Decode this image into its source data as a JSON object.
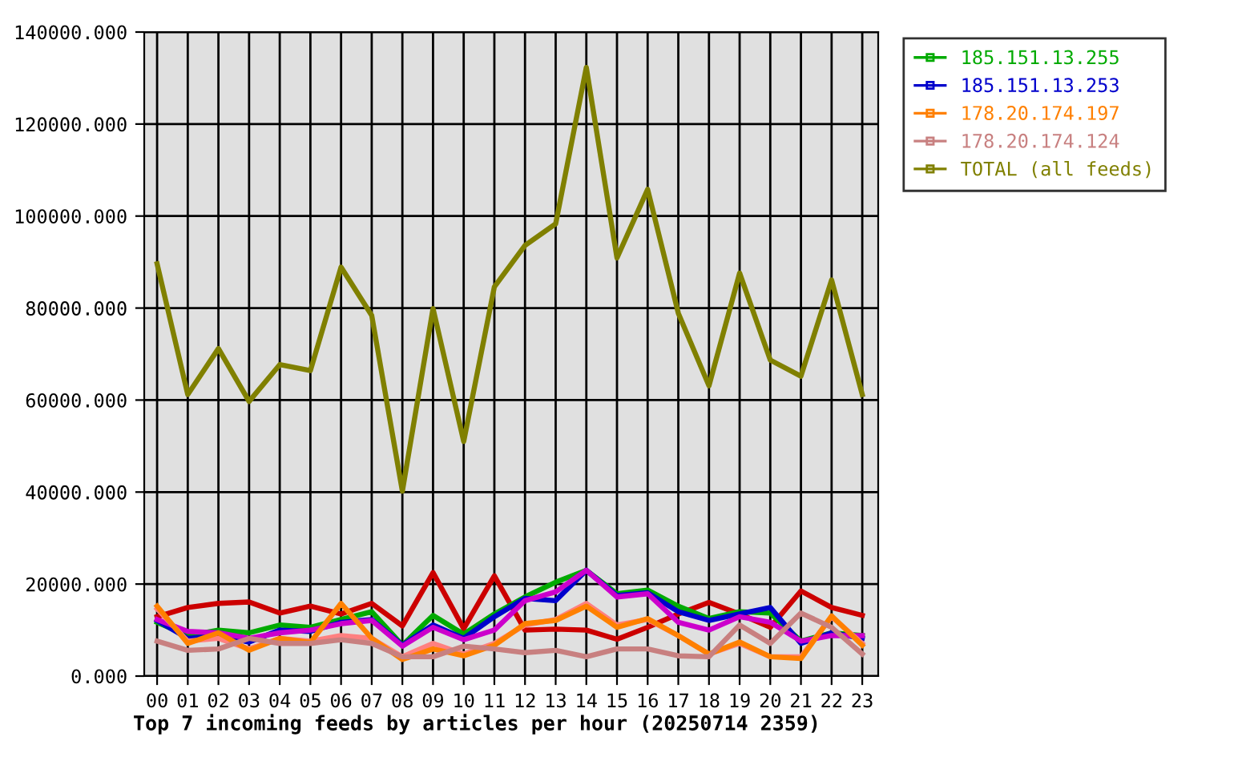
{
  "chart_data": {
    "type": "line",
    "title": "Top 7 incoming feeds by articles per hour (20250714 2359)",
    "categories": [
      "00",
      "01",
      "02",
      "03",
      "04",
      "05",
      "06",
      "07",
      "08",
      "09",
      "10",
      "11",
      "12",
      "13",
      "14",
      "15",
      "16",
      "17",
      "18",
      "19",
      "20",
      "21",
      "22",
      "23"
    ],
    "series": [
      {
        "color": "#cc0000",
        "values": [
          12900,
          14900,
          15800,
          16100,
          13700,
          15200,
          13500,
          15800,
          10900,
          22500,
          10300,
          21800,
          10000,
          10200,
          10000,
          8000,
          10600,
          13500,
          16000,
          13500,
          10600,
          18500,
          14900,
          13200
        ]
      },
      {
        "name": "185.151.13.255",
        "color": "#00aa00",
        "values": [
          11700,
          8800,
          10000,
          9400,
          11100,
          10600,
          12300,
          14000,
          6700,
          13200,
          9100,
          13500,
          17200,
          20400,
          23000,
          17900,
          18700,
          15200,
          12500,
          14000,
          13700,
          7600,
          9400,
          8800
        ]
      },
      {
        "name": "185.151.13.253",
        "color": "#0000cc",
        "values": [
          12100,
          8200,
          8800,
          7400,
          10000,
          9700,
          11700,
          12300,
          6700,
          11100,
          8200,
          12900,
          16900,
          16400,
          23000,
          17500,
          18100,
          14000,
          12100,
          13500,
          14900,
          7100,
          9400,
          8200
        ]
      },
      {
        "color": "#cc00cc",
        "values": [
          12300,
          9700,
          9400,
          8200,
          9400,
          10000,
          11400,
          12100,
          6500,
          10600,
          7900,
          10000,
          16400,
          18300,
          23000,
          17200,
          17900,
          11700,
          10000,
          12900,
          11700,
          7600,
          8800,
          8800
        ]
      },
      {
        "color": "#ff8080",
        "values": [
          14600,
          7600,
          8200,
          5900,
          8200,
          7600,
          8800,
          8200,
          4200,
          7100,
          4800,
          7100,
          11100,
          12300,
          15800,
          11100,
          12300,
          8800,
          4800,
          7100,
          4200,
          4200,
          12900,
          7100
        ]
      },
      {
        "name": "178.20.174.197",
        "color": "#ff8000",
        "values": [
          15200,
          7100,
          9400,
          5600,
          8200,
          7300,
          15800,
          8200,
          3600,
          5900,
          4400,
          6700,
          11400,
          12100,
          15200,
          10600,
          12500,
          8800,
          4800,
          7400,
          4200,
          3800,
          13100,
          6700
        ]
      },
      {
        "name": "178.20.174.124",
        "color": "#c88080",
        "values": [
          7600,
          5600,
          5900,
          8200,
          7100,
          7100,
          7900,
          7100,
          4200,
          4200,
          6500,
          5900,
          5100,
          5600,
          4200,
          5900,
          5900,
          4400,
          4200,
          11100,
          7100,
          13700,
          10600,
          4800
        ]
      },
      {
        "name": "TOTAL (all feeds)",
        "color": "#808000",
        "values": [
          89600,
          61200,
          71200,
          59700,
          67700,
          66400,
          88900,
          78400,
          40200,
          79900,
          51000,
          84600,
          93600,
          98300,
          132300,
          90900,
          105800,
          78900,
          63100,
          87600,
          68700,
          65200,
          86100,
          61200
        ]
      }
    ],
    "ylim": [
      0,
      140000
    ],
    "yticks": [
      {
        "value": 0,
        "label": "0.000"
      },
      {
        "value": 20000,
        "label": "20000.000"
      },
      {
        "value": 40000,
        "label": "40000.000"
      },
      {
        "value": 60000,
        "label": "60000.000"
      },
      {
        "value": 80000,
        "label": "80000.000"
      },
      {
        "value": 100000,
        "label": "100000.000"
      },
      {
        "value": 120000,
        "label": "120000.000"
      },
      {
        "value": 140000,
        "label": "140000.000"
      }
    ],
    "grid": true,
    "legend": "top right",
    "line_style": "solid"
  }
}
